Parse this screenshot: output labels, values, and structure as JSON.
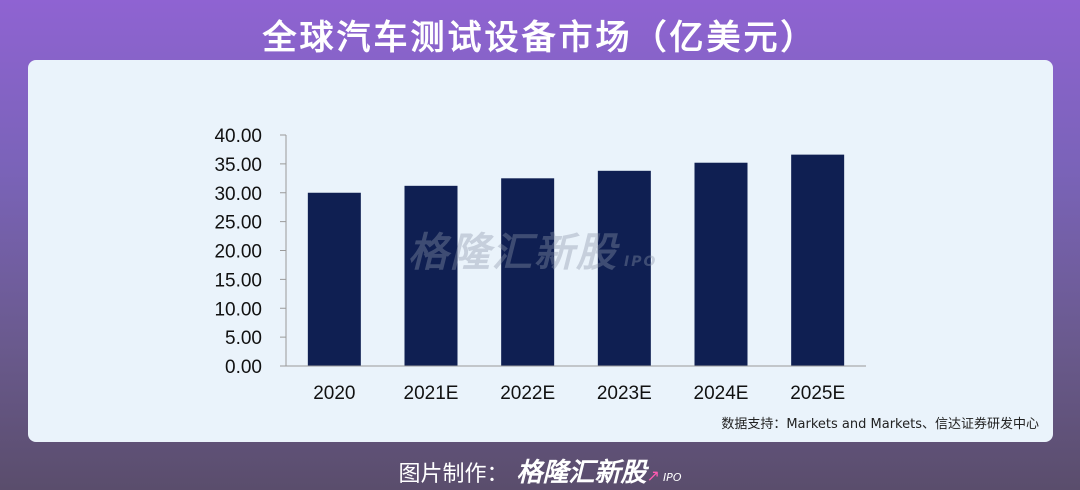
{
  "header": {
    "title": "全球汽车测试设备市场（亿美元）"
  },
  "source_note": "数据支持：Markets and Markets、信达证券研发中心",
  "watermark": {
    "text": "格隆汇新股",
    "suffix": "IPO"
  },
  "footer": {
    "label": "图片制作：",
    "brand": "格隆汇新股",
    "suffix": "IPO"
  },
  "colors": {
    "bar": "#0f1f52",
    "card": "#eaf3fb",
    "axis": "#9a9a9a"
  },
  "chart_data": {
    "type": "bar",
    "title": "全球汽车测试设备市场（亿美元）",
    "xlabel": "",
    "ylabel": "",
    "categories": [
      "2020",
      "2021E",
      "2022E",
      "2023E",
      "2024E",
      "2025E"
    ],
    "values": [
      30.0,
      31.2,
      32.5,
      33.8,
      35.2,
      36.6
    ],
    "ylim": [
      0,
      40
    ],
    "yticks": [
      "0.00",
      "5.00",
      "10.00",
      "15.00",
      "20.00",
      "25.00",
      "30.00",
      "35.00",
      "40.00"
    ],
    "grid": false,
    "legend": "none"
  }
}
